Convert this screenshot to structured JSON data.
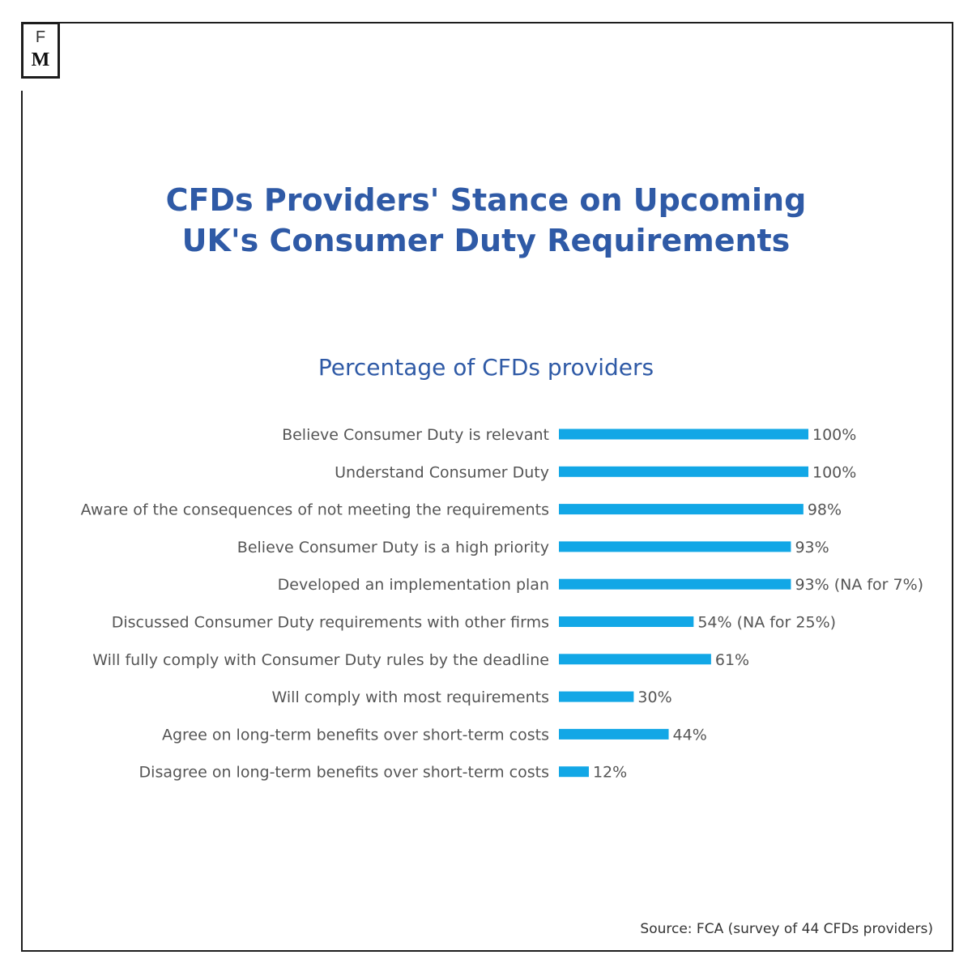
{
  "logo": {
    "top_letter": "F",
    "bottom_letter": "M"
  },
  "title_line1": "CFDs Providers' Stance on Upcoming",
  "title_line2": "UK's Consumer Duty Requirements",
  "source": "Source: FCA (survey of 44 CFDs providers)",
  "colors": {
    "bar": "#12a7e6",
    "title": "#2f5aa6",
    "label": "#555555"
  },
  "chart_data": {
    "type": "bar",
    "orientation": "horizontal",
    "title": "Percentage of CFDs providers",
    "categories": [
      "Believe Consumer Duty is relevant",
      "Understand Consumer Duty",
      "Aware of the consequences of not meeting the requirements",
      "Believe Consumer Duty is a high priority",
      "Developed an implementation plan",
      "Discussed Consumer Duty requirements with other firms",
      "Will fully comply with Consumer Duty rules by the deadline",
      "Will comply with most requirements",
      "Agree on long-term benefits over short-term costs",
      "Disagree on long-term benefits over short-term costs"
    ],
    "values": [
      100,
      100,
      98,
      93,
      93,
      54,
      61,
      30,
      44,
      12
    ],
    "value_labels": [
      "100%",
      "100%",
      "98%",
      "93%",
      "93% (NA for 7%)",
      "54% (NA for 25%)",
      "61%",
      "30%",
      "44%",
      "12%"
    ],
    "xlim": [
      0,
      100
    ],
    "grid": false,
    "legend": "none"
  }
}
